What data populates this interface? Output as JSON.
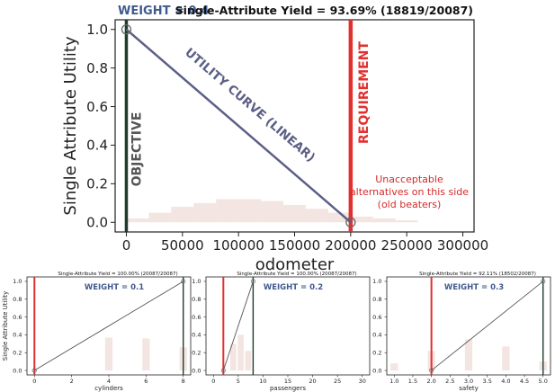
{
  "chart_data": [
    {
      "type": "line",
      "title": "Single-Attribute Yield = 93.69% (18819/20087)",
      "weight_label": "WEIGHT = 0.4",
      "xlabel": "odometer",
      "ylabel": "Single Attribute Utility",
      "xlim": [
        -10000,
        310000
      ],
      "ylim": [
        -0.05,
        1.05
      ],
      "xticks": [
        0,
        50000,
        100000,
        150000,
        200000,
        250000,
        300000
      ],
      "xtick_labels": [
        "0",
        "50000",
        "100000",
        "150000",
        "200000",
        "250000",
        "300000"
      ],
      "yticks": [
        0.0,
        0.2,
        0.4,
        0.6,
        0.8,
        1.0
      ],
      "ytick_labels": [
        "0.0",
        "0.2",
        "0.4",
        "0.6",
        "0.8",
        "1.0"
      ],
      "series": [
        {
          "name": "UTILITY CURVE (LINEAR)",
          "x": [
            0,
            200000
          ],
          "y": [
            1.0,
            0.0
          ]
        }
      ],
      "objective": {
        "x": 0,
        "label": "OBJECTIVE"
      },
      "requirement": {
        "x": 200000,
        "label": "REQUIREMENT"
      },
      "annotation": [
        "Unacceptable",
        "alternatives on this side",
        "(old beaters)"
      ],
      "histogram": {
        "bin_edges": [
          0,
          20000,
          40000,
          60000,
          80000,
          100000,
          120000,
          140000,
          160000,
          180000,
          200000,
          220000,
          240000,
          260000
        ],
        "heights": [
          0.02,
          0.05,
          0.08,
          0.1,
          0.12,
          0.12,
          0.11,
          0.09,
          0.07,
          0.05,
          0.03,
          0.02,
          0.01
        ]
      },
      "colors": {
        "curve": "#5b5f86",
        "objective": "#1e3d2a",
        "requirement": "#e23030",
        "annotation": "#d42a2a",
        "hist": "#f3e5e1",
        "weight": "#3f5a8f"
      }
    },
    {
      "type": "line",
      "title": "Single-Attribute Yield = 100.00% (20087/20087)",
      "weight_label": "WEIGHT = 0.1",
      "xlabel": "cylinders",
      "ylabel": "Single Attribute Utility",
      "xlim": [
        -0.4,
        8.4
      ],
      "ylim": [
        -0.05,
        1.05
      ],
      "xticks": [
        0,
        2,
        4,
        6,
        8
      ],
      "xtick_labels": [
        "0",
        "2",
        "4",
        "6",
        "8"
      ],
      "yticks": [
        0.0,
        0.2,
        0.4,
        0.6,
        0.8,
        1.0
      ],
      "ytick_labels": [
        "0.0",
        "0.2",
        "0.4",
        "0.6",
        "0.8",
        "1.0"
      ],
      "series": [
        {
          "x": [
            0,
            8
          ],
          "y": [
            0.0,
            1.0
          ]
        }
      ],
      "objective": {
        "x": 8
      },
      "requirement": {
        "x": 0
      },
      "histogram": {
        "bars": [
          {
            "x": 4,
            "w": 0.4,
            "h": 0.37
          },
          {
            "x": 6,
            "w": 0.4,
            "h": 0.36
          },
          {
            "x": 8,
            "w": 0.4,
            "h": 0.26
          }
        ]
      }
    },
    {
      "type": "line",
      "title": "Single-Attribute Yield = 100.00% (20087/20087)",
      "weight_label": "WEIGHT = 0.2",
      "xlabel": "passengers",
      "ylabel": "",
      "xlim": [
        -1.5,
        31.5
      ],
      "ylim": [
        -0.05,
        1.05
      ],
      "xticks": [
        0,
        5,
        10,
        15,
        20,
        25,
        30
      ],
      "xtick_labels": [
        "0",
        "5",
        "10",
        "15",
        "20",
        "25",
        "30"
      ],
      "yticks": [
        0.0,
        0.2,
        0.4,
        0.6,
        0.8,
        1.0
      ],
      "ytick_labels": [
        "0.0",
        "0.2",
        "0.4",
        "0.6",
        "0.8",
        "1.0"
      ],
      "series": [
        {
          "x": [
            2,
            8
          ],
          "y": [
            0.0,
            1.0
          ]
        }
      ],
      "objective": {
        "x": 8
      },
      "requirement": {
        "x": 2
      },
      "histogram": {
        "bars": [
          {
            "x": 4,
            "w": 1.2,
            "h": 0.3
          },
          {
            "x": 5.5,
            "w": 1.2,
            "h": 0.4
          },
          {
            "x": 7,
            "w": 1.2,
            "h": 0.22
          }
        ]
      }
    },
    {
      "type": "line",
      "title": "Single-Attribute Yield = 92.11% (18502/20087)",
      "weight_label": "WEIGHT = 0.3",
      "xlabel": "safety",
      "ylabel": "",
      "xlim": [
        0.8,
        5.2
      ],
      "ylim": [
        -0.05,
        1.05
      ],
      "xticks": [
        1.0,
        1.5,
        2.0,
        2.5,
        3.0,
        3.5,
        4.0,
        4.5,
        5.0
      ],
      "xtick_labels": [
        "1.0",
        "1.5",
        "2.0",
        "2.5",
        "3.0",
        "3.5",
        "4.0",
        "4.5",
        "5.0"
      ],
      "yticks": [
        0.0,
        0.2,
        0.4,
        0.6,
        0.8,
        1.0
      ],
      "ytick_labels": [
        "0.0",
        "0.2",
        "0.4",
        "0.6",
        "0.8",
        "1.0"
      ],
      "series": [
        {
          "x": [
            2,
            5
          ],
          "y": [
            0.0,
            1.0
          ]
        }
      ],
      "objective": {
        "x": 5
      },
      "requirement": {
        "x": 2
      },
      "histogram": {
        "bars": [
          {
            "x": 1,
            "w": 0.2,
            "h": 0.08
          },
          {
            "x": 2,
            "w": 0.2,
            "h": 0.22
          },
          {
            "x": 3,
            "w": 0.2,
            "h": 0.35
          },
          {
            "x": 4,
            "w": 0.2,
            "h": 0.27
          },
          {
            "x": 5,
            "w": 0.2,
            "h": 0.1
          }
        ]
      }
    }
  ]
}
